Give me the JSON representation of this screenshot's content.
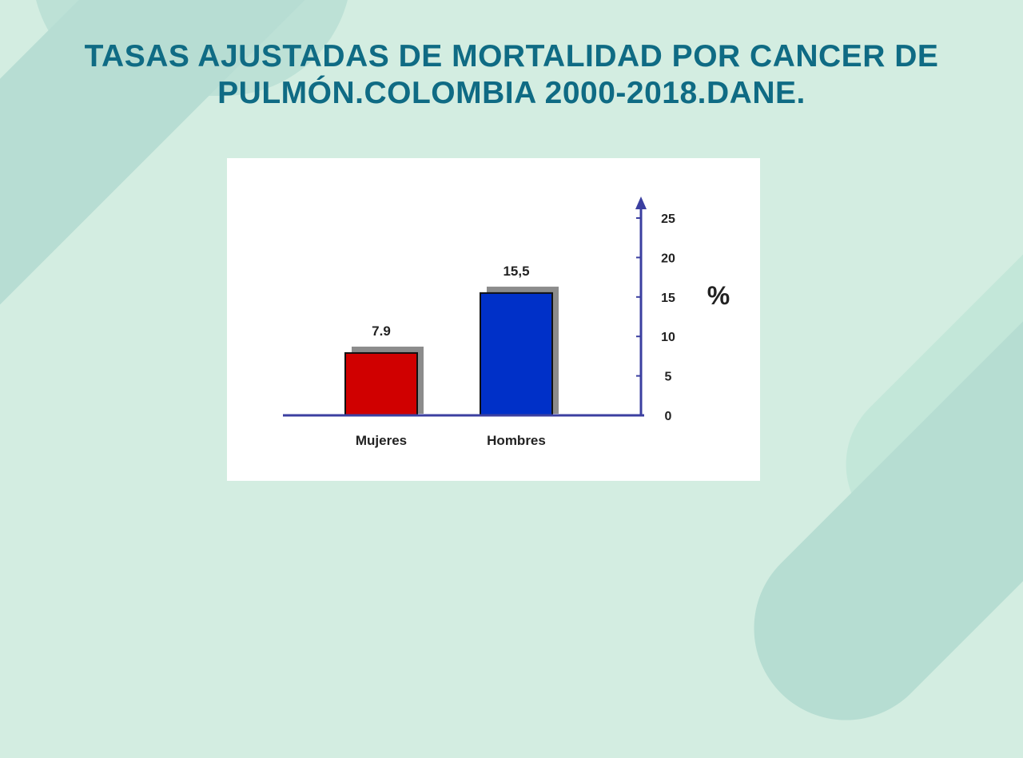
{
  "title": {
    "line1": "TASAS AJUSTADAS DE MORTALIDAD  POR CANCER DE",
    "line2": "PULMÓN.COLOMBIA 2000-2018.DANE."
  },
  "chart_data": {
    "type": "bar",
    "categories": [
      "Mujeres",
      "Hombres"
    ],
    "values": [
      7.9,
      15.5
    ],
    "value_labels": [
      "7.9",
      "15,5"
    ],
    "bar_colors": [
      "#d00000",
      "#0030c8"
    ],
    "ylabel": "%",
    "yticks": [
      0,
      5,
      10,
      15,
      20,
      25
    ],
    "ylim": [
      0,
      25
    ],
    "y_axis_side": "right",
    "axis_color": "#3b3fa0",
    "grid": false,
    "legend": "none"
  }
}
